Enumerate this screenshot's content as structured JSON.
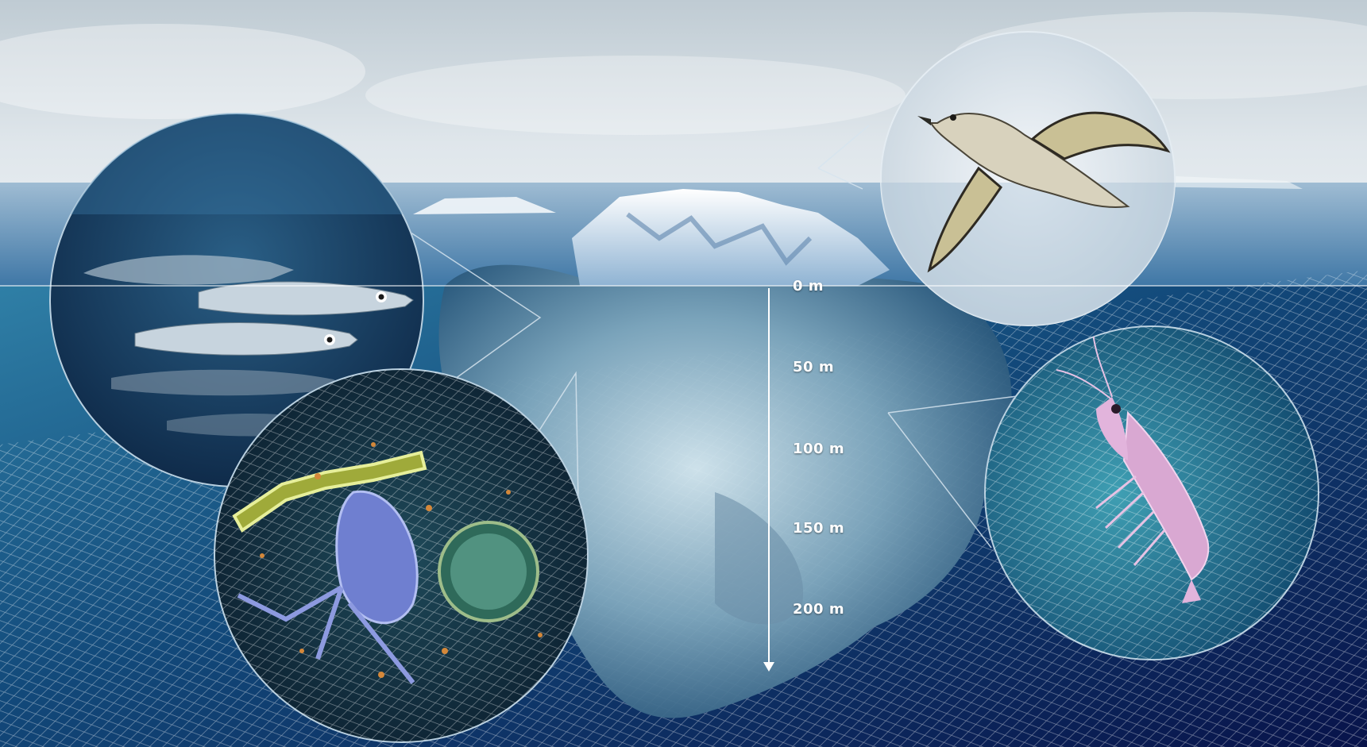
{
  "depth_scale": {
    "unit": "m",
    "labels": [
      "0 m",
      "50 m",
      "100 m",
      "150 m",
      "200 m"
    ],
    "values": [
      0,
      50,
      100,
      150,
      200
    ]
  },
  "colors": {
    "sky_top": "#cdd6dc",
    "sky_bottom": "#e9eef2",
    "surface_water": "#7fa6c4",
    "deep_water": "#0c1c52",
    "mid_water": "#1a5a86",
    "iceberg_light": "#e8f2f8",
    "iceberg_shadow": "#3f6e93",
    "net_lines": "#ffffff",
    "scale_line": "#ffffff"
  },
  "organisms": [
    {
      "name": "seabird",
      "icon": "bird-icon"
    },
    {
      "name": "fish",
      "icon": "fish-icon"
    },
    {
      "name": "krill",
      "icon": "krill-icon"
    },
    {
      "name": "plankton",
      "icon": "plankton-icon"
    }
  ]
}
